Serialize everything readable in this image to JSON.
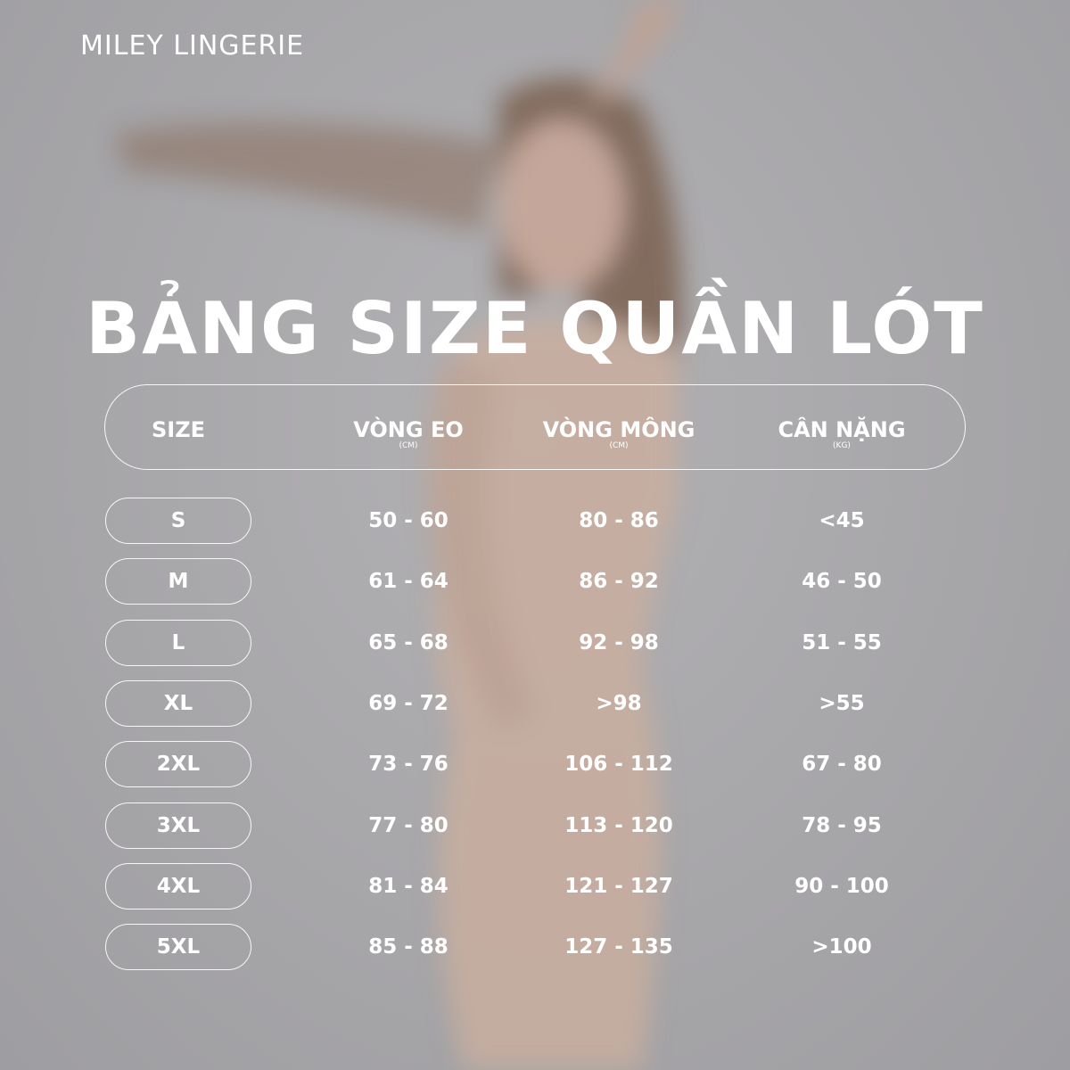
{
  "brand": "MILEY LINGERIE",
  "title": "BẢNG SIZE QUẦN LÓT",
  "columns": [
    {
      "label": "SIZE",
      "unit": ""
    },
    {
      "label": "VÒNG EO",
      "unit": "(CM)"
    },
    {
      "label": "VÒNG MÔNG",
      "unit": "(CM)"
    },
    {
      "label": "CÂN NẶNG",
      "unit": "(KG)"
    }
  ],
  "rows": [
    {
      "size": "S",
      "waist": "50 - 60",
      "hip": "80 - 86",
      "weight": "<45"
    },
    {
      "size": "M",
      "waist": "61 - 64",
      "hip": "86 - 92",
      "weight": "46 - 50"
    },
    {
      "size": "L",
      "waist": "65 - 68",
      "hip": "92 - 98",
      "weight": "51 - 55"
    },
    {
      "size": "XL",
      "waist": "69 - 72",
      "hip": ">98",
      "weight": ">55"
    },
    {
      "size": "2XL",
      "waist": "73 - 76",
      "hip": "106 - 112",
      "weight": "67 - 80"
    },
    {
      "size": "3XL",
      "waist": "77 - 80",
      "hip": "113 - 120",
      "weight": "78 - 95"
    },
    {
      "size": "4XL",
      "waist": "81 - 84",
      "hip": "121 - 127",
      "weight": "90 - 100"
    },
    {
      "size": "5XL",
      "waist": "85 - 88",
      "hip": "127 - 135",
      "weight": ">100"
    }
  ]
}
